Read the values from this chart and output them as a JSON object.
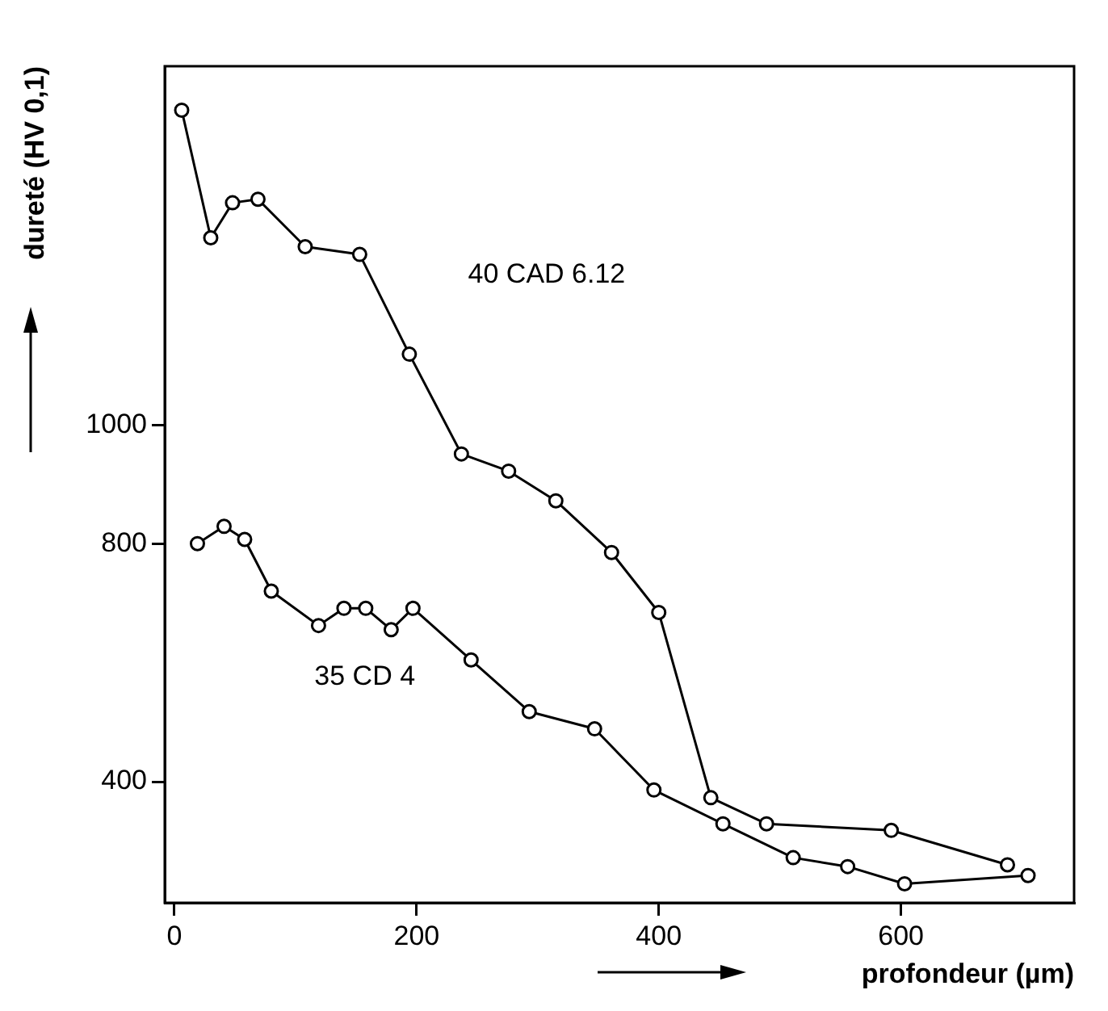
{
  "chart_data": {
    "type": "line",
    "xlabel": "profondeur (µm)",
    "ylabel": "dureté (HV 0,1)",
    "xlim": [
      -8,
      743
    ],
    "xticks": [
      0,
      200,
      400,
      600
    ],
    "ylim": [
      196,
      1605
    ],
    "yticks": [
      400,
      800,
      1000
    ],
    "marker": "circle",
    "line_style": "solid",
    "grid": false,
    "legend": false,
    "series": [
      {
        "name": "40 CAD 6.12",
        "color": "#000000",
        "x": [
          6,
          30,
          48,
          69,
          108,
          153,
          194,
          237,
          276,
          315,
          361,
          400,
          443,
          489,
          592,
          688
        ],
        "values": [
          1531,
          1316,
          1375,
          1381,
          1301,
          1288,
          1120,
          952,
          923,
          873,
          786,
          685,
          373,
          329,
          318,
          260
        ]
      },
      {
        "name": "35 CD 4",
        "color": "#000000",
        "x": [
          19,
          41,
          58,
          80,
          119,
          140,
          158,
          179,
          197,
          245,
          293,
          347,
          396,
          453,
          511,
          556,
          603,
          705
        ],
        "values": [
          801,
          830,
          808,
          721,
          663,
          692,
          692,
          656,
          692,
          605,
          518,
          489,
          386,
          329,
          272,
          257,
          228,
          242
        ]
      }
    ]
  }
}
